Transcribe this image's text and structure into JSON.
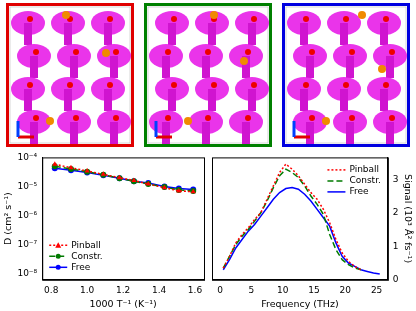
{
  "chart_data": [
    {
      "type": "line",
      "y_label": "D (cm² s⁻¹)",
      "x_label": "1000 T⁻¹ (K⁻¹)",
      "log": "y",
      "grid": false,
      "legend": "lower left",
      "xlim": [
        0.75,
        1.65
      ],
      "xticks": [
        0.8,
        {
          "value": 1,
          "label": "1.0"
        },
        1.2,
        1.4,
        1.6
      ],
      "ylim": [
        6e-09,
        0.0001
      ],
      "yticks": [
        {
          "value": 1e-08,
          "label": "10⁻⁸"
        },
        {
          "value": 1e-07,
          "label": "10⁻⁷"
        },
        {
          "value": 1e-06,
          "label": "10⁻⁶"
        },
        {
          "value": 1e-05,
          "label": "10⁻⁵"
        },
        {
          "value": 0.0001,
          "label": "10⁻⁴"
        }
      ],
      "x": [
        0.82,
        0.91,
        1.0,
        1.09,
        1.18,
        1.26,
        1.34,
        1.43,
        1.51,
        1.59
      ],
      "series": [
        {
          "name": "Pinball",
          "color": "#ff0000",
          "line_style": "dotted",
          "marker": "triangle",
          "values": [
            5.8e-05,
            4.4e-05,
            3.4e-05,
            2.6e-05,
            2e-05,
            1.6e-05,
            1.2e-05,
            9e-06,
            7e-06,
            6.5e-06
          ]
        },
        {
          "name": "Constr.",
          "color": "#007a00",
          "line_style": "dashed",
          "marker": "circle",
          "values": [
            5e-05,
            4e-05,
            3.2e-05,
            2.5e-05,
            1.9e-05,
            1.5e-05,
            1.2e-05,
            9.5e-06,
            7.5e-06,
            7e-06
          ]
        },
        {
          "name": "Free",
          "color": "#0000ff",
          "line_style": "solid",
          "marker": "circle",
          "values": [
            4.2e-05,
            3.6e-05,
            3e-05,
            2.4e-05,
            1.9e-05,
            1.5e-05,
            1.3e-05,
            1e-05,
            8.5e-06,
            7.8e-06
          ]
        }
      ]
    },
    {
      "type": "line",
      "y_label": "Signal (10³ Å² fs⁻¹)",
      "x_label": "Frequency (THz)",
      "grid": false,
      "legend": "upper right",
      "xlim": [
        -1.3,
        26.8
      ],
      "xticks": [
        0,
        5,
        10,
        15,
        20,
        25
      ],
      "ylim": [
        0,
        3.65
      ],
      "yticks": [
        0,
        1,
        2,
        3
      ],
      "x": [
        0.5,
        1.5,
        2.5,
        3.5,
        4.5,
        5.5,
        6.5,
        7.5,
        8.5,
        9.5,
        10.5,
        11.5,
        12.5,
        13.5,
        14.5,
        15.5,
        16.5,
        17.5,
        18.5,
        19.5,
        20.5,
        21.5,
        22.5,
        23.5,
        24.5,
        25.5
      ],
      "series": [
        {
          "name": "Pinball",
          "color": "#ff0000",
          "line_style": "dotted",
          "values": [
            0.35,
            0.7,
            1.1,
            1.35,
            1.55,
            1.8,
            2.0,
            2.4,
            2.8,
            3.2,
            3.45,
            3.3,
            3.1,
            2.85,
            2.6,
            2.4,
            2.1,
            1.7,
            1.2,
            0.8,
            0.55,
            0.4,
            0.3,
            null,
            null,
            null
          ]
        },
        {
          "name": "Constr.",
          "color": "#007a00",
          "line_style": "dashed",
          "values": [
            0.35,
            0.7,
            1.05,
            1.3,
            1.5,
            1.75,
            2.0,
            2.35,
            2.75,
            3.1,
            3.3,
            3.2,
            3.05,
            2.8,
            2.5,
            2.25,
            1.95,
            1.35,
            0.9,
            0.6,
            0.45,
            0.35,
            0.3,
            null,
            null,
            null
          ]
        },
        {
          "name": "Free",
          "color": "#0000ff",
          "line_style": "solid",
          "values": [
            0.3,
            0.6,
            0.95,
            1.2,
            1.45,
            1.65,
            1.9,
            2.15,
            2.4,
            2.6,
            2.72,
            2.75,
            2.7,
            2.55,
            2.35,
            2.1,
            1.85,
            1.6,
            1.1,
            0.7,
            0.5,
            0.4,
            0.3,
            0.25,
            0.2,
            0.17
          ]
        }
      ]
    }
  ]
}
